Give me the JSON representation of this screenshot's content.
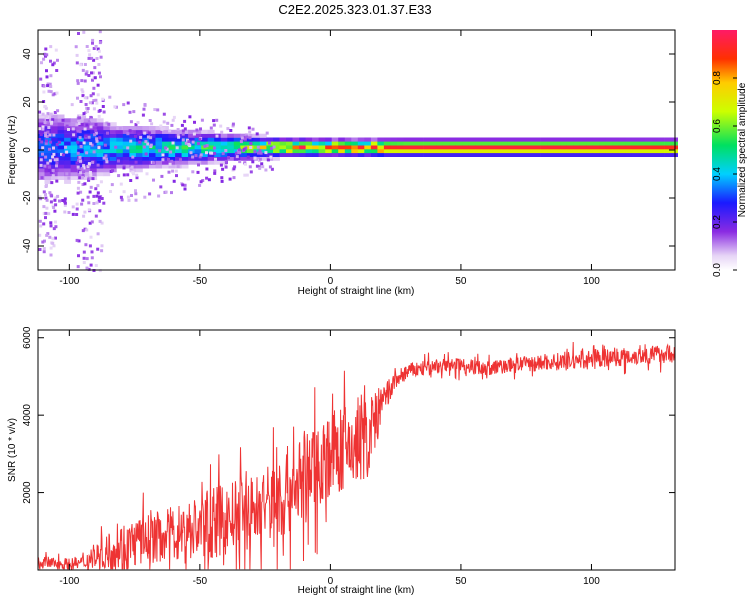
{
  "chart_data": [
    {
      "type": "heatmap",
      "title": "C2E2.2025.323.01.37.E33",
      "xlabel": "Height of straight line (km)",
      "ylabel": "Frequency (Hz)",
      "xlim": [
        -112,
        132
      ],
      "ylim": [
        -50,
        50
      ],
      "x_ticks": [
        -100,
        -50,
        0,
        50,
        100
      ],
      "y_ticks": [
        -40,
        -20,
        0,
        20,
        40
      ],
      "x_tick_labels": [
        "-100",
        "-50",
        "0",
        "50",
        "100"
      ],
      "y_tick_labels": [
        "-40",
        "-20",
        "0",
        "20",
        "40"
      ],
      "ridge_frequency_hz": 1,
      "colorbar": {
        "label": "Normalized spectral amplitude",
        "range": [
          0,
          1
        ],
        "ticks": [
          0,
          0.2,
          0.4,
          0.6,
          0.8
        ],
        "tick_labels": [
          "0.0",
          "0.2",
          "0.4",
          "0.6",
          "0.8"
        ]
      },
      "amplitude_profile": [
        {
          "x": -112,
          "peak": 0.3,
          "spread_hz": 8
        },
        {
          "x": -95,
          "peak": 0.35,
          "spread_hz": 7
        },
        {
          "x": -80,
          "peak": 0.4,
          "spread_hz": 5
        },
        {
          "x": -60,
          "peak": 0.45,
          "spread_hz": 4
        },
        {
          "x": -40,
          "peak": 0.5,
          "spread_hz": 3
        },
        {
          "x": -20,
          "peak": 0.75,
          "spread_hz": 2
        },
        {
          "x": 0,
          "peak": 0.85,
          "spread_hz": 1.8
        },
        {
          "x": 30,
          "peak": 0.95,
          "spread_hz": 1.8
        },
        {
          "x": 100,
          "peak": 0.95,
          "spread_hz": 1.8
        },
        {
          "x": 132,
          "peak": 0.92,
          "spread_hz": 1.8
        }
      ],
      "scatter_bands": [
        {
          "x": -110,
          "extent_hz": 45
        },
        {
          "x": -93,
          "extent_hz": 50
        }
      ]
    },
    {
      "type": "line",
      "xlabel": "Height of straight line (km)",
      "ylabel": "SNR (10 * v/v)",
      "xlim": [
        -112,
        132
      ],
      "ylim": [
        0,
        6200
      ],
      "x_ticks": [
        -100,
        -50,
        0,
        50,
        100
      ],
      "y_ticks": [
        2000,
        4000,
        6000
      ],
      "x_tick_labels": [
        "-100",
        "-50",
        "0",
        "50",
        "100"
      ],
      "y_tick_labels": [
        "2000",
        "4000",
        "6000"
      ],
      "color": "#ee3333",
      "series": [
        {
          "name": "SNR",
          "x": [
            -112,
            -100,
            -95,
            -90,
            -80,
            -70,
            -60,
            -50,
            -40,
            -30,
            -20,
            -10,
            0,
            10,
            15,
            20,
            25,
            30,
            40,
            50,
            60,
            70,
            80,
            90,
            100,
            110,
            120,
            132
          ],
          "base": [
            200,
            150,
            180,
            350,
            600,
            800,
            950,
            1100,
            1300,
            1500,
            1800,
            2400,
            3000,
            3200,
            3500,
            4300,
            4900,
            5150,
            5250,
            5300,
            5200,
            5300,
            5350,
            5400,
            5450,
            5500,
            5550,
            5600
          ],
          "noise": [
            200,
            200,
            250,
            400,
            800,
            800,
            900,
            1100,
            1200,
            1200,
            1500,
            1500,
            1400,
            1400,
            1300,
            600,
            300,
            250,
            250,
            250,
            250,
            250,
            250,
            300,
            300,
            300,
            300,
            300
          ]
        }
      ]
    }
  ]
}
